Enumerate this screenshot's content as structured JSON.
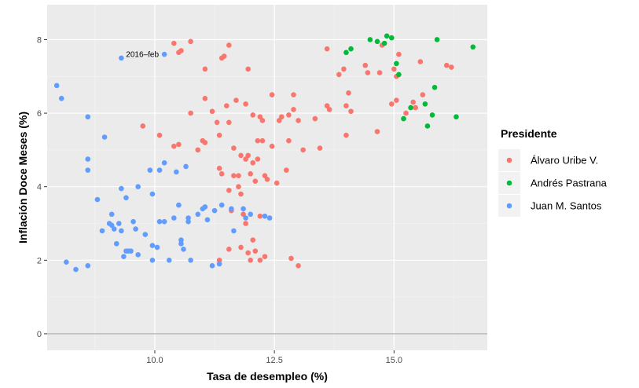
{
  "chart_data": {
    "type": "scatter",
    "xlabel": "Tasa de desempleo (%)",
    "ylabel": "Inflación Doce Meses (%)",
    "xlim": [
      7.75,
      16.95
    ],
    "ylim": [
      -0.45,
      8.95
    ],
    "x_ticks": [
      10.0,
      12.5,
      15.0
    ],
    "x_tick_labels": [
      "10.0",
      "12.5",
      "15.0"
    ],
    "y_ticks": [
      0,
      2,
      4,
      6,
      8
    ],
    "y_tick_labels": [
      "0",
      "2",
      "4",
      "6",
      "8"
    ],
    "hline": 0,
    "grid": true,
    "legend": {
      "title": "Presidente",
      "position": "right"
    },
    "annotation": {
      "text": "2016–feb",
      "x": 9.25,
      "y": 7.6
    },
    "series": [
      {
        "name": "Álvaro Uribe V.",
        "color": "#F8766D",
        "points": [
          [
            10.4,
            7.9
          ],
          [
            10.75,
            7.95
          ],
          [
            10.5,
            7.65
          ],
          [
            10.55,
            7.7
          ],
          [
            11.55,
            7.85
          ],
          [
            11.4,
            7.5
          ],
          [
            11.45,
            7.55
          ],
          [
            11.95,
            7.2
          ],
          [
            11.05,
            7.2
          ],
          [
            10.4,
            5.1
          ],
          [
            10.5,
            5.15
          ],
          [
            10.9,
            5.0
          ],
          [
            10.75,
            6.0
          ],
          [
            10.1,
            5.4
          ],
          [
            11.05,
            6.4
          ],
          [
            11.2,
            6.05
          ],
          [
            11.3,
            5.75
          ],
          [
            11.5,
            6.2
          ],
          [
            11.55,
            5.75
          ],
          [
            11.7,
            6.35
          ],
          [
            11.9,
            6.25
          ],
          [
            12.05,
            5.95
          ],
          [
            12.2,
            5.9
          ],
          [
            12.25,
            5.8
          ],
          [
            12.45,
            6.5
          ],
          [
            12.65,
            5.9
          ],
          [
            12.8,
            5.95
          ],
          [
            12.9,
            6.5
          ],
          [
            12.9,
            6.1
          ],
          [
            13.0,
            5.8
          ],
          [
            11.0,
            5.25
          ],
          [
            11.05,
            5.2
          ],
          [
            11.35,
            5.4
          ],
          [
            11.65,
            5.05
          ],
          [
            11.8,
            4.85
          ],
          [
            11.95,
            4.85
          ],
          [
            11.9,
            4.75
          ],
          [
            12.05,
            4.65
          ],
          [
            12.15,
            5.25
          ],
          [
            12.15,
            4.75
          ],
          [
            12.25,
            5.25
          ],
          [
            12.45,
            5.1
          ],
          [
            12.6,
            5.8
          ],
          [
            12.8,
            5.25
          ],
          [
            13.1,
            5.0
          ],
          [
            13.35,
            5.85
          ],
          [
            13.45,
            5.05
          ],
          [
            11.35,
            4.5
          ],
          [
            11.4,
            4.35
          ],
          [
            11.55,
            3.9
          ],
          [
            11.65,
            4.3
          ],
          [
            11.75,
            4.3
          ],
          [
            11.75,
            4.0
          ],
          [
            11.8,
            3.8
          ],
          [
            12.0,
            4.35
          ],
          [
            12.1,
            4.15
          ],
          [
            12.3,
            4.3
          ],
          [
            12.35,
            4.2
          ],
          [
            12.55,
            4.1
          ],
          [
            12.75,
            4.45
          ],
          [
            11.6,
            3.35
          ],
          [
            11.85,
            3.25
          ],
          [
            11.9,
            3.0
          ],
          [
            12.05,
            2.55
          ],
          [
            12.2,
            3.2
          ],
          [
            11.8,
            2.35
          ],
          [
            11.95,
            2.2
          ],
          [
            12.1,
            2.25
          ],
          [
            12.0,
            2.0
          ],
          [
            12.2,
            2.0
          ],
          [
            12.3,
            2.1
          ],
          [
            11.35,
            2.0
          ],
          [
            11.55,
            2.3
          ],
          [
            12.85,
            2.05
          ],
          [
            13.0,
            1.85
          ],
          [
            9.75,
            5.65
          ],
          [
            13.6,
            6.2
          ],
          [
            13.65,
            6.1
          ],
          [
            13.6,
            7.75
          ],
          [
            13.85,
            7.05
          ],
          [
            13.95,
            7.2
          ],
          [
            14.05,
            6.55
          ],
          [
            14.0,
            6.2
          ],
          [
            14.1,
            6.05
          ],
          [
            14.0,
            5.4
          ],
          [
            14.65,
            5.5
          ],
          [
            14.4,
            7.3
          ],
          [
            14.45,
            7.1
          ],
          [
            14.7,
            7.1
          ],
          [
            14.75,
            7.85
          ],
          [
            15.0,
            7.2
          ],
          [
            15.05,
            7.0
          ],
          [
            15.1,
            7.6
          ],
          [
            15.4,
            6.3
          ],
          [
            15.45,
            6.15
          ],
          [
            15.55,
            7.4
          ],
          [
            15.6,
            6.5
          ],
          [
            16.1,
            7.3
          ],
          [
            16.2,
            7.25
          ],
          [
            14.95,
            6.25
          ],
          [
            15.05,
            6.35
          ],
          [
            15.25,
            6.0
          ]
        ]
      },
      {
        "name": "Andrés Pastrana",
        "color": "#00BA38",
        "points": [
          [
            14.5,
            8.0
          ],
          [
            14.65,
            7.95
          ],
          [
            14.8,
            7.9
          ],
          [
            14.85,
            8.1
          ],
          [
            14.95,
            8.05
          ],
          [
            15.05,
            7.35
          ],
          [
            15.1,
            7.05
          ],
          [
            14.0,
            7.65
          ],
          [
            14.1,
            7.75
          ],
          [
            15.2,
            5.85
          ],
          [
            15.35,
            6.15
          ],
          [
            15.65,
            6.25
          ],
          [
            15.7,
            5.65
          ],
          [
            15.8,
            5.95
          ],
          [
            15.85,
            6.7
          ],
          [
            15.9,
            8.0
          ],
          [
            16.3,
            5.9
          ],
          [
            16.65,
            7.8
          ]
        ]
      },
      {
        "name": "Juan M. Santos",
        "color": "#619CFF",
        "points": [
          [
            7.95,
            6.75
          ],
          [
            8.05,
            6.4
          ],
          [
            8.15,
            1.95
          ],
          [
            8.35,
            1.75
          ],
          [
            8.6,
            1.85
          ],
          [
            8.6,
            4.75
          ],
          [
            8.6,
            4.45
          ],
          [
            8.6,
            5.9
          ],
          [
            8.8,
            3.65
          ],
          [
            8.9,
            2.8
          ],
          [
            8.95,
            5.35
          ],
          [
            9.05,
            3.0
          ],
          [
            9.1,
            2.95
          ],
          [
            9.1,
            3.25
          ],
          [
            9.15,
            2.85
          ],
          [
            9.2,
            2.45
          ],
          [
            9.25,
            3.0
          ],
          [
            9.3,
            3.95
          ],
          [
            9.3,
            2.8
          ],
          [
            9.35,
            2.1
          ],
          [
            9.4,
            3.7
          ],
          [
            9.4,
            2.25
          ],
          [
            9.5,
            2.25
          ],
          [
            9.55,
            3.05
          ],
          [
            9.6,
            2.85
          ],
          [
            9.65,
            4.0
          ],
          [
            9.65,
            2.15
          ],
          [
            9.8,
            2.7
          ],
          [
            9.9,
            4.45
          ],
          [
            9.95,
            3.8
          ],
          [
            9.95,
            2.0
          ],
          [
            10.05,
            2.35
          ],
          [
            10.1,
            4.45
          ],
          [
            10.2,
            3.05
          ],
          [
            10.2,
            4.65
          ],
          [
            10.3,
            2.0
          ],
          [
            10.4,
            3.15
          ],
          [
            10.45,
            4.4
          ],
          [
            10.5,
            3.5
          ],
          [
            10.55,
            2.55
          ],
          [
            10.55,
            2.45
          ],
          [
            10.6,
            2.3
          ],
          [
            10.65,
            4.55
          ],
          [
            10.7,
            3.15
          ],
          [
            10.75,
            2.0
          ],
          [
            10.9,
            3.25
          ],
          [
            11.0,
            3.4
          ],
          [
            11.05,
            3.45
          ],
          [
            11.1,
            3.1
          ],
          [
            11.2,
            1.85
          ],
          [
            11.25,
            3.35
          ],
          [
            11.35,
            1.9
          ],
          [
            11.4,
            3.5
          ],
          [
            11.6,
            3.4
          ],
          [
            11.65,
            2.8
          ],
          [
            11.85,
            3.4
          ],
          [
            11.9,
            3.15
          ],
          [
            12.0,
            3.25
          ],
          [
            12.3,
            3.2
          ],
          [
            12.4,
            3.15
          ],
          [
            9.3,
            7.5
          ],
          [
            10.2,
            7.6
          ],
          [
            10.7,
            3.05
          ],
          [
            10.1,
            3.05
          ],
          [
            9.45,
            2.25
          ],
          [
            9.95,
            2.4
          ]
        ]
      }
    ]
  }
}
